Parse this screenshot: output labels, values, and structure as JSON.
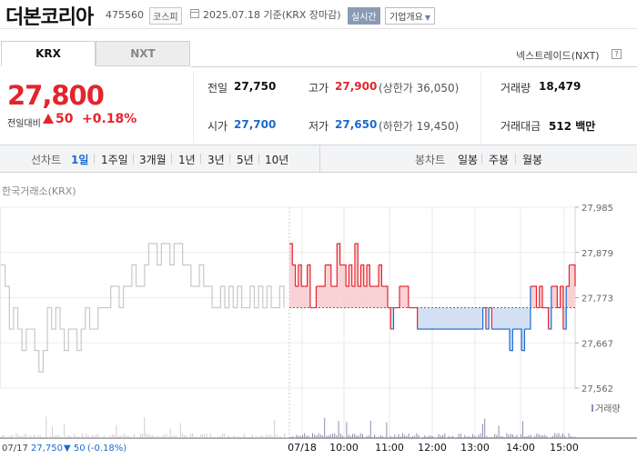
{
  "header": {
    "company": "더본코리아",
    "code": "475560",
    "market": "코스피",
    "date": "2025.07.18 기준(KRX 장마감)",
    "realtime": "실시간",
    "overview": "기업개요"
  },
  "tabs": {
    "krx": "KRX",
    "nxt": "NXT",
    "nxt_link": "넥스트레이드(NXT)"
  },
  "price": {
    "current": "27,800",
    "change_label": "전일대비",
    "change_amount": "50",
    "change_pct": "+0.18%"
  },
  "stats": {
    "prev_close_label": "전일",
    "prev_close": "27,750",
    "high_label": "고가",
    "high": "27,900",
    "upper_limit": "(상한가 36,050)",
    "volume_label": "거래량",
    "volume": "18,479",
    "open_label": "시가",
    "open": "27,700",
    "low_label": "저가",
    "low": "27,650",
    "lower_limit": "(하한가 19,450)",
    "amount_label": "거래대금",
    "amount": "512 백만"
  },
  "period": {
    "line_label": "선차트",
    "line_items": [
      "1일",
      "1주일",
      "3개월",
      "1년",
      "3년",
      "5년",
      "10년"
    ],
    "candle_label": "봉차트",
    "candle_items": [
      "일봉",
      "주봉",
      "월봉"
    ]
  },
  "source_label": "한국거래소(KRX)",
  "colors": {
    "up": "#e4242d",
    "down": "#1a6acf",
    "prev_day": "#c8c8c8",
    "accent_tag": "#8a9bb4"
  },
  "chart_data": {
    "type": "line",
    "y_ticks": [
      "27,985",
      "27,879",
      "27,773",
      "27,667",
      "27,562"
    ],
    "ylim": [
      27562,
      27985
    ],
    "baseline": 27750,
    "x_ticks": [
      "07/17",
      "07/18",
      "10:00",
      "11:00",
      "12:00",
      "13:00",
      "14:00",
      "15:00"
    ],
    "volume_label": "거래량",
    "footer": {
      "date": "07/17",
      "price": "27,750",
      "change": "50",
      "change_pct": "(-0.18%)"
    },
    "series": [
      {
        "role": "previous-day",
        "y": [
          27850,
          27800,
          27700,
          27750,
          27700,
          27650,
          27700,
          27700,
          27650,
          27600,
          27650,
          27750,
          27700,
          27750,
          27700,
          27650,
          27700,
          27700,
          27650,
          27700,
          27750,
          27700,
          27700,
          27750,
          27750,
          27750,
          27800,
          27800,
          27750,
          27800,
          27800,
          27850,
          27800,
          27800,
          27850,
          27900,
          27900,
          27850,
          27900,
          27900,
          27850,
          27900,
          27900,
          27850,
          27850,
          27800,
          27800,
          27850,
          27800,
          27800,
          27750,
          27750,
          27800,
          27750,
          27800,
          27750,
          27800,
          27750,
          27750,
          27800,
          27750,
          27800,
          27750,
          27800,
          27750,
          27750,
          27800,
          27750
        ]
      },
      {
        "role": "today",
        "y": [
          27900,
          27850,
          27800,
          27850,
          27800,
          27800,
          27850,
          27750,
          27750,
          27800,
          27800,
          27800,
          27850,
          27850,
          27800,
          27800,
          27900,
          27850,
          27850,
          27800,
          27850,
          27800,
          27900,
          27800,
          27850,
          27800,
          27850,
          27800,
          27800,
          27800,
          27850,
          27800,
          27800,
          27750,
          27700,
          27750,
          27750,
          27800,
          27800,
          27800,
          27750,
          27750,
          27750,
          27700,
          27700,
          27700,
          27700,
          27700,
          27700,
          27700,
          27700,
          27700,
          27700,
          27700,
          27700,
          27700,
          27700,
          27700,
          27700,
          27700,
          27700,
          27700,
          27700,
          27700,
          27700,
          27750,
          27700,
          27750,
          27700,
          27700,
          27700,
          27700,
          27700,
          27700,
          27650,
          27700,
          27700,
          27700,
          27650,
          27700,
          27700,
          27800,
          27800,
          27750,
          27800,
          27750,
          27750,
          27700,
          27800,
          27800,
          27750,
          27800,
          27700,
          27800,
          27850,
          27850,
          27800
        ]
      }
    ]
  }
}
